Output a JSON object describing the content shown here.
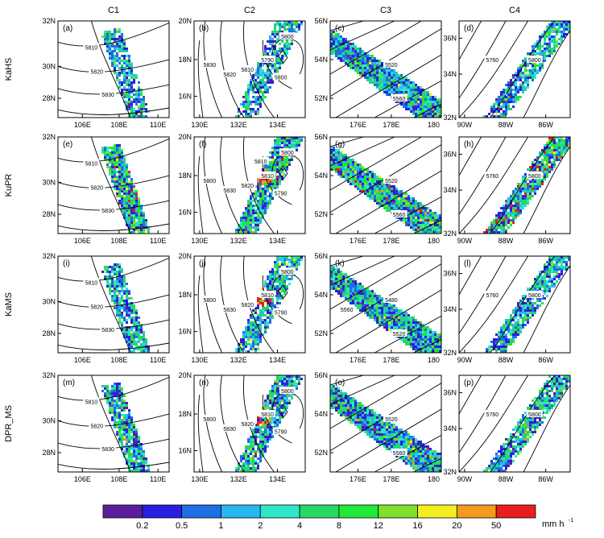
{
  "columns": [
    "C1",
    "C2",
    "C3",
    "C4"
  ],
  "rows": [
    "KaHS",
    "KuPR",
    "KaMS",
    "DPR_MS"
  ],
  "panel_labels": [
    "(a)",
    "(b)",
    "(c)",
    "(d)",
    "(e)",
    "(f)",
    "(g)",
    "(h)",
    "(i)",
    "(j)",
    "(k)",
    "(l)",
    "(m)",
    "(n)",
    "(o)",
    "(p)"
  ],
  "axes": [
    {
      "xticks": [
        "106E",
        "108E",
        "110E"
      ],
      "yticks": [
        "32N",
        "30N",
        "28N"
      ]
    },
    {
      "xticks": [
        "130E",
        "132E",
        "134E"
      ],
      "yticks": [
        "20N",
        "18N",
        "16N"
      ]
    },
    {
      "xticks": [
        "176E",
        "178E",
        "180"
      ],
      "yticks": [
        "56N",
        "54N",
        "52N"
      ]
    },
    {
      "xticks": [
        "90W",
        "88W",
        "86W"
      ],
      "yticks": [
        "36N",
        "34N",
        "32N"
      ]
    }
  ],
  "contour_labels": [
    [
      "5810",
      "5820",
      "5830"
    ],
    [
      "5800",
      "5790",
      "5800",
      "5830",
      "5820",
      "5810"
    ],
    [
      "5520",
      "5560"
    ],
    [
      "5760",
      "5800"
    ]
  ],
  "contour_labels_rows": {
    "C1": [
      [
        "5810",
        "5820",
        "5830"
      ],
      [
        "5810",
        "5820",
        "5830"
      ],
      [
        "5810",
        "5820",
        "5830"
      ],
      [
        "5810",
        "5820",
        "5830"
      ]
    ],
    "C2": [
      [
        "5800",
        "5790",
        "5800",
        "5830",
        "5820",
        "5810"
      ],
      [
        "5800",
        "5810",
        "5790",
        "5800",
        "5830",
        "5820",
        "5810"
      ],
      [
        "5800",
        "5810",
        "5790",
        "5800",
        "5830",
        "5820"
      ],
      [
        "5800",
        "5810",
        "5790",
        "5800",
        "5830",
        "5820"
      ]
    ],
    "C3": [
      [
        "5520",
        "5560"
      ],
      [
        "5520",
        "5560"
      ],
      [
        "5480",
        "5520",
        "5560"
      ],
      [
        "5520",
        "5560"
      ]
    ],
    "C4": [
      [
        "5760",
        "5800"
      ],
      [
        "5760",
        "5800"
      ],
      [
        "5760",
        "5800"
      ],
      [
        "5760",
        "5800"
      ]
    ]
  },
  "colorbar": {
    "ticks": [
      "0.2",
      "0.5",
      "1",
      "2",
      "4",
      "8",
      "12",
      "16",
      "20",
      "50"
    ],
    "unit": "mm h",
    "unit_exp": "-1",
    "colors": [
      "#5a1e9a",
      "#2a1fe0",
      "#1e6ee6",
      "#2ab7f0",
      "#2ee6c8",
      "#27d866",
      "#22e83a",
      "#7ee02a",
      "#f2ee20",
      "#f59a1e",
      "#e81e1e"
    ]
  },
  "chart_data": {
    "type": "heatmap",
    "description_rows": [
      "KaHS",
      "KuPR",
      "KaMS",
      "DPR_MS"
    ],
    "description_columns": [
      "C1",
      "C2",
      "C3",
      "C4"
    ],
    "colorbar_levels": [
      0.2,
      0.5,
      1,
      2,
      4,
      8,
      12,
      16,
      20,
      50
    ],
    "colorbar_unit": "mm h-1"
  }
}
